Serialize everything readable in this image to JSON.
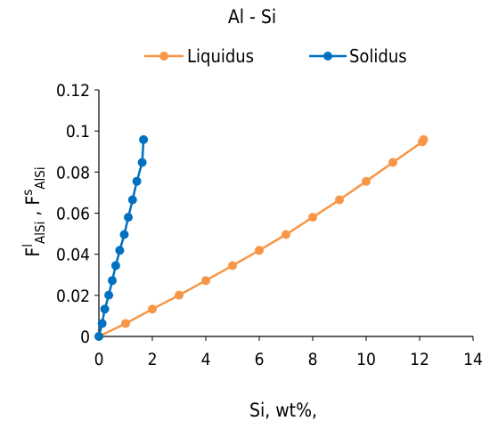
{
  "chart_data": {
    "type": "scatter",
    "title": "Al - Si",
    "xlabel": "Si, wt%,",
    "ylabel": {
      "parts": [
        {
          "text": "F",
          "role": "base"
        },
        {
          "text": "l",
          "role": "sup"
        },
        {
          "text": "AlSi",
          "role": "sub"
        },
        {
          "text": " , F",
          "role": "base"
        },
        {
          "text": "s",
          "role": "sup"
        },
        {
          "text": "AlSi",
          "role": "sub"
        }
      ]
    },
    "xlim": [
      0,
      14
    ],
    "ylim": [
      0,
      0.12
    ],
    "xticks": [
      "0",
      "2",
      "4",
      "6",
      "8",
      "10",
      "12",
      "14"
    ],
    "yticks": [
      "0",
      "0.02",
      "0.04",
      "0.06",
      "0.08",
      "0.1",
      "0.12"
    ],
    "grid": false,
    "legend_position": "top",
    "series": [
      {
        "name": "Liquidus",
        "color": "#F79646",
        "line": true,
        "x": [
          0,
          1,
          2,
          3,
          4,
          5,
          6,
          7,
          8,
          9,
          10,
          11,
          12.1,
          12.15
        ],
        "y": [
          0,
          0.0063,
          0.0133,
          0.0201,
          0.0272,
          0.0345,
          0.0419,
          0.0496,
          0.058,
          0.0665,
          0.0755,
          0.0847,
          0.0947,
          0.0958
        ]
      },
      {
        "name": "Solidus",
        "color": "#0070C0",
        "line": true,
        "x": [
          0,
          0.12,
          0.22,
          0.37,
          0.5,
          0.63,
          0.78,
          0.95,
          1.1,
          1.26,
          1.42,
          1.62,
          1.67
        ],
        "y": [
          0,
          0.0063,
          0.0133,
          0.0201,
          0.0272,
          0.0345,
          0.0419,
          0.0496,
          0.058,
          0.0665,
          0.0755,
          0.0847,
          0.0958
        ]
      }
    ]
  }
}
